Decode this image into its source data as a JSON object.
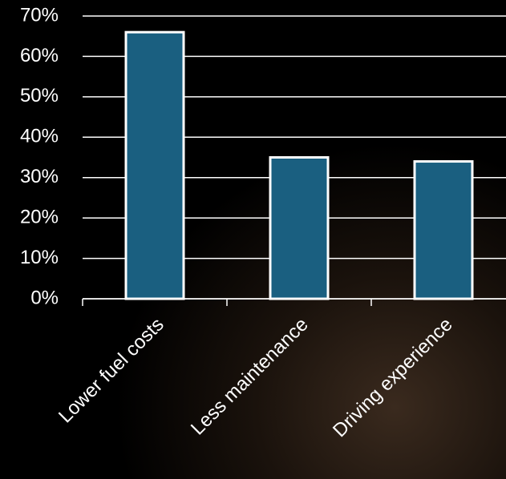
{
  "chart_data": {
    "type": "bar",
    "categories": [
      "Lower fuel costs",
      "Less maintenance",
      "Driving experience"
    ],
    "values": [
      66,
      35,
      34
    ],
    "color": "#1a5f80",
    "ylim": [
      0,
      70
    ],
    "yticks": [
      {
        "value": 0,
        "label": "0%"
      },
      {
        "value": 10,
        "label": "10%"
      },
      {
        "value": 20,
        "label": "20%"
      },
      {
        "value": 30,
        "label": "30%"
      },
      {
        "value": 40,
        "label": "40%"
      },
      {
        "value": 50,
        "label": "50%"
      },
      {
        "value": 60,
        "label": "60%"
      },
      {
        "value": 70,
        "label": "70%"
      }
    ],
    "grid": true
  }
}
